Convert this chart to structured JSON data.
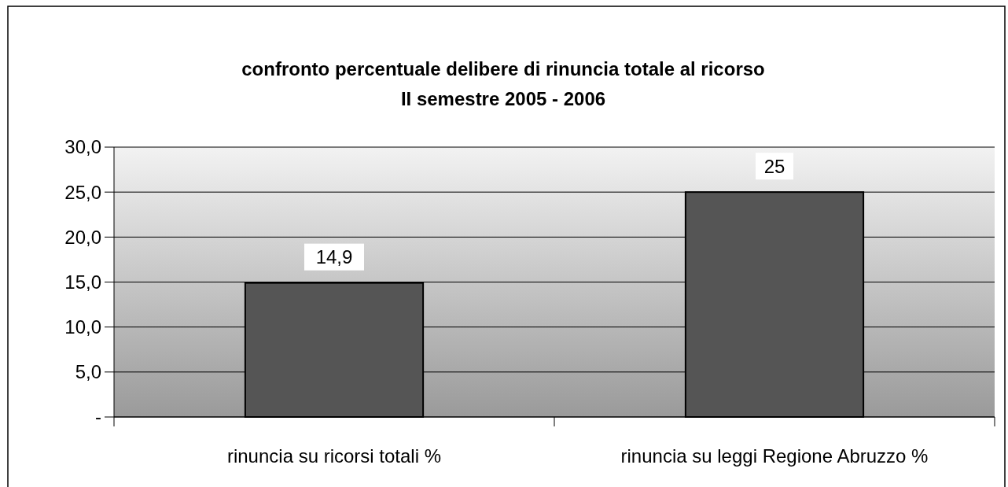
{
  "chart_data": {
    "type": "bar",
    "title": "confronto percentuale delibere di rinuncia totale al ricorso\nII semestre 2005 - 2006",
    "categories": [
      "rinuncia su ricorsi totali %",
      "rinuncia su leggi Regione Abruzzo %"
    ],
    "values": [
      14.9,
      25
    ],
    "color": "#555555",
    "value_labels": [
      "14,9",
      "25"
    ],
    "ylim": [
      0,
      30
    ],
    "yticks": [
      {
        "value": 0,
        "label": "-"
      },
      {
        "value": 5,
        "label": "5,0"
      },
      {
        "value": 10,
        "label": "10,0"
      },
      {
        "value": 15,
        "label": "15,0"
      },
      {
        "value": 20,
        "label": "20,0"
      },
      {
        "value": 25,
        "label": "25,0"
      },
      {
        "value": 30,
        "label": "30,0"
      }
    ],
    "grid": "y"
  }
}
